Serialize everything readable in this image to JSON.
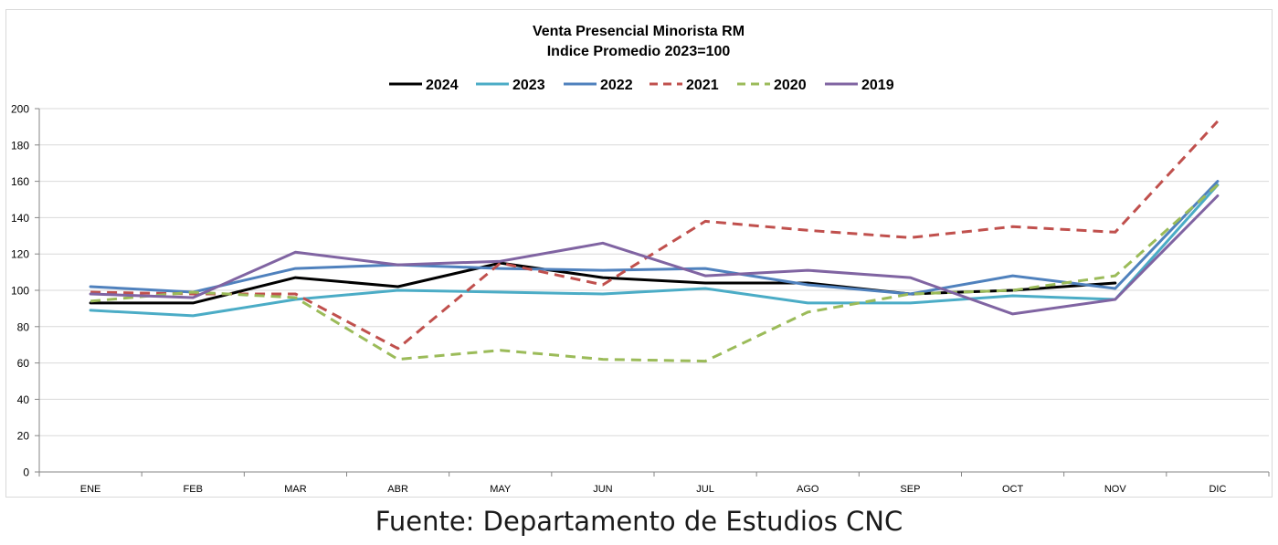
{
  "chart_data": {
    "type": "line",
    "title": "Venta Presencial Minorista RM",
    "subtitle": "Indice Promedio 2023=100",
    "xlabel": "",
    "ylabel": "",
    "categories": [
      "ENE",
      "FEB",
      "MAR",
      "ABR",
      "MAY",
      "JUN",
      "JUL",
      "AGO",
      "SEP",
      "OCT",
      "NOV",
      "DIC"
    ],
    "ylim": [
      0,
      200
    ],
    "yticks": [
      0,
      20,
      40,
      60,
      80,
      100,
      120,
      140,
      160,
      180,
      200
    ],
    "grid": true,
    "legend_position": "top-center",
    "series": [
      {
        "name": "2024",
        "color": "#000000",
        "dash": "solid",
        "values": [
          93,
          93,
          107,
          102,
          115,
          107,
          104,
          104,
          98,
          100,
          104,
          null
        ]
      },
      {
        "name": "2023",
        "color": "#4bacc6",
        "dash": "solid",
        "values": [
          89,
          86,
          95,
          100,
          99,
          98,
          101,
          93,
          93,
          97,
          95,
          158
        ]
      },
      {
        "name": "2022",
        "color": "#4f81bd",
        "dash": "solid",
        "values": [
          102,
          99,
          112,
          114,
          112,
          111,
          112,
          103,
          98,
          108,
          101,
          160
        ]
      },
      {
        "name": "2021",
        "color": "#c0504d",
        "dash": "dashed",
        "values": [
          99,
          98,
          98,
          68,
          115,
          103,
          138,
          133,
          129,
          135,
          132,
          193
        ]
      },
      {
        "name": "2020",
        "color": "#9bbb59",
        "dash": "dashed",
        "values": [
          94,
          99,
          96,
          62,
          67,
          62,
          61,
          88,
          98,
          100,
          108,
          158
        ]
      },
      {
        "name": "2019",
        "color": "#8064a2",
        "dash": "solid",
        "values": [
          98,
          96,
          121,
          114,
          116,
          126,
          108,
          111,
          107,
          87,
          95,
          152
        ]
      }
    ]
  },
  "footer": {
    "source": "Fuente: Departamento de Estudios CNC"
  }
}
